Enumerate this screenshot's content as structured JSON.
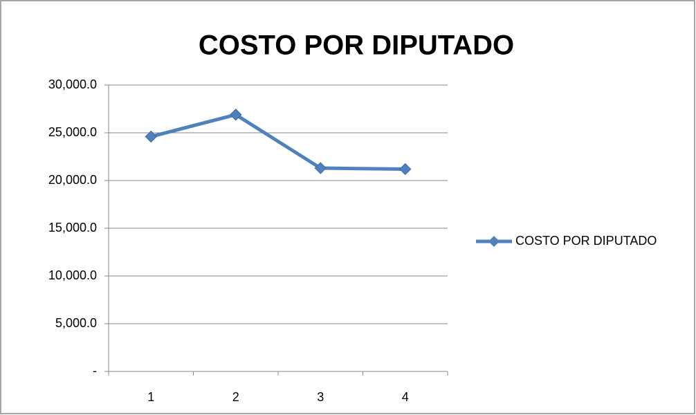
{
  "chart_data": {
    "type": "line",
    "title": "COSTO POR DIPUTADO",
    "categories": [
      "1",
      "2",
      "3",
      "4"
    ],
    "series": [
      {
        "name": "COSTO POR DIPUTADO",
        "color": "#4f81bd",
        "values": [
          24600,
          26900,
          21300,
          21200
        ]
      }
    ],
    "ylim": [
      0,
      30000
    ],
    "yticks": [
      {
        "value": 0,
        "label": "-"
      },
      {
        "value": 5000,
        "label": "5,000.0"
      },
      {
        "value": 10000,
        "label": "10,000.0"
      },
      {
        "value": 15000,
        "label": "15,000.0"
      },
      {
        "value": 20000,
        "label": "20,000.0"
      },
      {
        "value": 25000,
        "label": "25,000.0"
      },
      {
        "value": 30000,
        "label": "30,000.0"
      }
    ],
    "grid": true,
    "legend": "right"
  }
}
